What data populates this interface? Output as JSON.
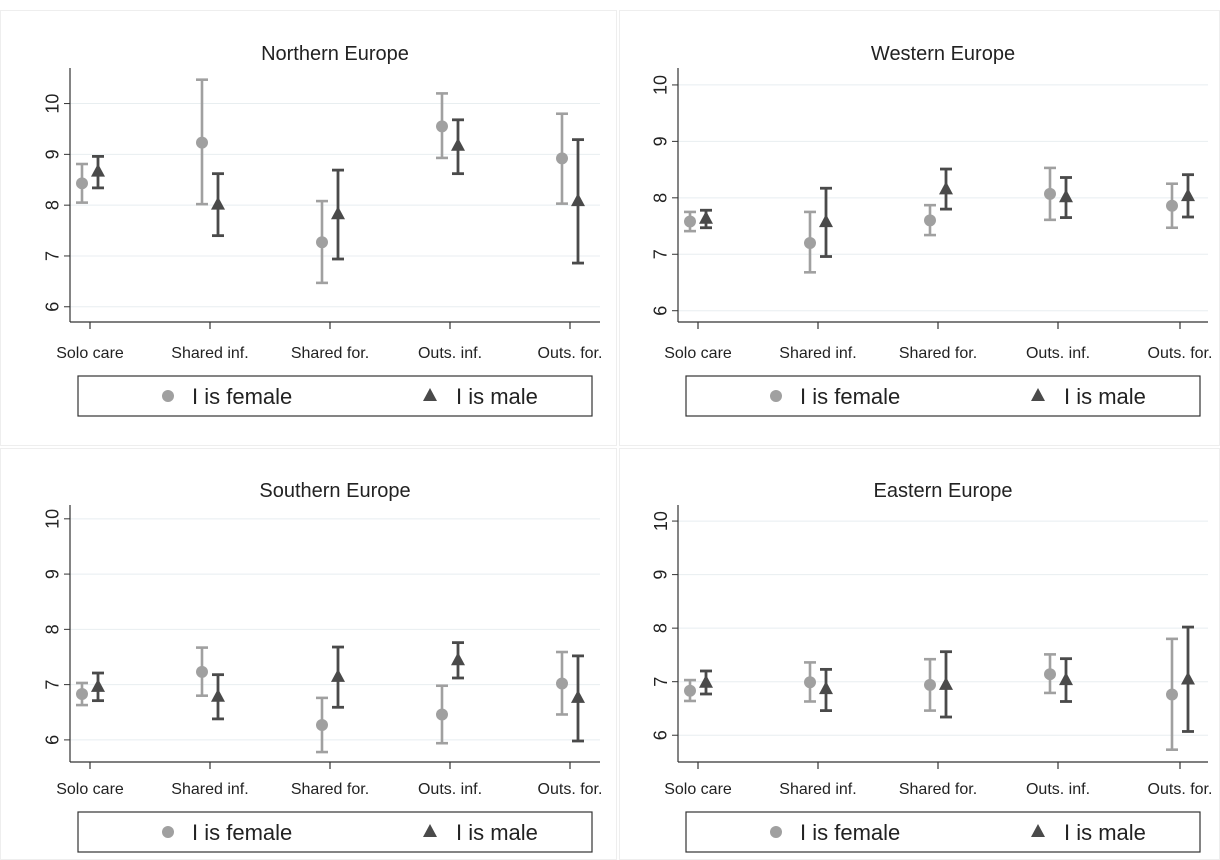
{
  "chart_data": [
    {
      "type": "scatter",
      "title": "Northern Europe",
      "categories": [
        "Solo care",
        "Shared inf.",
        "Shared for.",
        "Outs. inf.",
        "Outs. for."
      ],
      "ylim": [
        5.7,
        10.7
      ],
      "yticks": [
        6,
        7,
        8,
        9,
        10
      ],
      "legend_position": "bottom",
      "series": [
        {
          "name": "I is female",
          "marker": "circle",
          "color": "#a0a0a0",
          "values": [
            8.43,
            9.23,
            7.27,
            9.55,
            8.92
          ],
          "lower": [
            8.05,
            8.02,
            6.47,
            8.93,
            8.03
          ],
          "upper": [
            8.81,
            10.47,
            8.08,
            10.2,
            9.8
          ]
        },
        {
          "name": "I is male",
          "marker": "triangle",
          "color": "#4a4a4a",
          "values": [
            8.66,
            8.01,
            7.82,
            9.17,
            8.08
          ],
          "lower": [
            8.34,
            7.4,
            6.94,
            8.62,
            6.86
          ],
          "upper": [
            8.96,
            8.62,
            8.69,
            9.68,
            9.29
          ]
        }
      ]
    },
    {
      "type": "scatter",
      "title": "Western Europe",
      "categories": [
        "Solo care",
        "Shared inf.",
        "Shared for.",
        "Outs. inf.",
        "Outs. for."
      ],
      "ylim": [
        5.8,
        10.3
      ],
      "yticks": [
        6,
        7,
        8,
        9,
        10
      ],
      "legend_position": "bottom",
      "series": [
        {
          "name": "I is female",
          "marker": "circle",
          "color": "#a0a0a0",
          "values": [
            7.58,
            7.2,
            7.6,
            8.07,
            7.86
          ],
          "lower": [
            7.41,
            6.68,
            7.34,
            7.61,
            7.47
          ],
          "upper": [
            7.75,
            7.75,
            7.87,
            8.53,
            8.25
          ]
        },
        {
          "name": "I is male",
          "marker": "triangle",
          "color": "#4a4a4a",
          "values": [
            7.63,
            7.57,
            8.15,
            8.01,
            8.03
          ],
          "lower": [
            7.47,
            6.96,
            7.8,
            7.65,
            7.66
          ],
          "upper": [
            7.78,
            8.17,
            8.51,
            8.36,
            8.41
          ]
        }
      ]
    },
    {
      "type": "scatter",
      "title": "Southern Europe",
      "categories": [
        "Solo care",
        "Shared inf.",
        "Shared for.",
        "Outs. inf.",
        "Outs. for."
      ],
      "ylim": [
        5.6,
        10.25
      ],
      "yticks": [
        6,
        7,
        8,
        9,
        10
      ],
      "legend_position": "bottom",
      "series": [
        {
          "name": "I is female",
          "marker": "circle",
          "color": "#a0a0a0",
          "values": [
            6.83,
            7.23,
            6.27,
            6.46,
            7.02
          ],
          "lower": [
            6.63,
            6.8,
            5.78,
            5.94,
            6.46
          ],
          "upper": [
            7.03,
            7.67,
            6.76,
            6.98,
            7.59
          ]
        },
        {
          "name": "I is male",
          "marker": "triangle",
          "color": "#4a4a4a",
          "values": [
            6.96,
            6.78,
            7.14,
            7.44,
            6.76
          ],
          "lower": [
            6.71,
            6.38,
            6.59,
            7.12,
            5.98
          ],
          "upper": [
            7.21,
            7.18,
            7.68,
            7.76,
            7.52
          ]
        }
      ]
    },
    {
      "type": "scatter",
      "title": "Eastern Europe",
      "categories": [
        "Solo care",
        "Shared inf.",
        "Shared for.",
        "Outs. inf.",
        "Outs. for."
      ],
      "ylim": [
        5.5,
        10.3
      ],
      "yticks": [
        6,
        7,
        8,
        9,
        10
      ],
      "legend_position": "bottom",
      "series": [
        {
          "name": "I is female",
          "marker": "circle",
          "color": "#a0a0a0",
          "values": [
            6.83,
            6.99,
            6.94,
            7.14,
            6.76
          ],
          "lower": [
            6.64,
            6.63,
            6.46,
            6.79,
            5.73
          ],
          "upper": [
            7.03,
            7.36,
            7.42,
            7.51,
            7.8
          ]
        },
        {
          "name": "I is male",
          "marker": "triangle",
          "color": "#4a4a4a",
          "values": [
            6.98,
            6.86,
            6.94,
            7.03,
            7.04
          ],
          "lower": [
            6.77,
            6.46,
            6.34,
            6.63,
            6.07
          ],
          "upper": [
            7.2,
            7.23,
            7.56,
            7.43,
            8.02
          ]
        }
      ]
    }
  ]
}
